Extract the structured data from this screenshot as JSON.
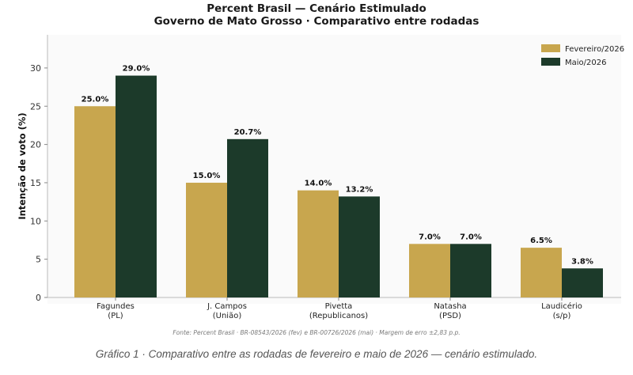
{
  "colors": {
    "fevereiro": "#c8a64e",
    "maio": "#1c3a2a"
  },
  "chart_data": {
    "type": "bar",
    "title": "Percent Brasil — Cenário Estimulado",
    "subtitle": "Governo de Mato Grosso · Comparativo entre rodadas",
    "ylabel": "Intenção de voto (%)",
    "xlabel": "",
    "ylim": [
      0,
      33
    ],
    "yticks": [
      0,
      5,
      10,
      15,
      20,
      25,
      30
    ],
    "grid": false,
    "legend_position": "top-right",
    "categories": [
      {
        "name": "Fagundes",
        "sub": "(PL)"
      },
      {
        "name": "J. Campos",
        "sub": "(União)"
      },
      {
        "name": "Pivetta",
        "sub": "(Republicanos)"
      },
      {
        "name": "Natasha",
        "sub": "(PSD)"
      },
      {
        "name": "Laudicério",
        "sub": "(s/p)"
      }
    ],
    "series": [
      {
        "name": "Fevereiro/2026",
        "values": [
          25.0,
          15.0,
          14.0,
          7.0,
          6.5
        ],
        "labels": [
          "25.0%",
          "15.0%",
          "14.0%",
          "7.0%",
          "6.5%"
        ]
      },
      {
        "name": "Maio/2026",
        "values": [
          29.0,
          20.7,
          13.2,
          7.0,
          3.8
        ],
        "labels": [
          "29.0%",
          "20.7%",
          "13.2%",
          "7.0%",
          "3.8%"
        ]
      }
    ]
  },
  "source": "Fonte: Percent Brasil · BR-08543/2026 (fev) e BR-00726/2026 (mai) · Margem de erro ±2,83 p.p.",
  "caption": "Gráfico 1 · Comparativo entre as rodadas de fevereiro e maio de 2026 — cenário estimulado."
}
